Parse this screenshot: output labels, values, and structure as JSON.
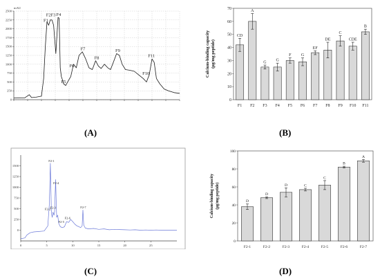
{
  "panel_labels": [
    "(A)",
    "(B)",
    "(C)",
    "(D)"
  ],
  "colors": {
    "chromA": "#1a1a1a",
    "chromC": "#6a78d8",
    "bar": "#d9d9d9"
  },
  "chart_data": [
    {
      "id": "A",
      "type": "line",
      "yunit": "mAU",
      "xunit": "min",
      "xlim": [
        0,
        30
      ],
      "ylim": [
        0,
        2500
      ],
      "xticks": [
        "0.0",
        "2.5",
        "5.0",
        "7.5",
        "10.0",
        "12.5",
        "15.0",
        "17.5",
        "20.0",
        "22.5",
        "25.0",
        "27.5",
        "30.0"
      ],
      "yticks": [
        "0",
        "250",
        "500",
        "750",
        "1000",
        "1250",
        "1500",
        "1750",
        "2000",
        "2250",
        "2500"
      ],
      "grid": true,
      "x": [
        0,
        2,
        2.8,
        3.2,
        4,
        5,
        5.4,
        5.7,
        6.0,
        6.3,
        6.6,
        6.9,
        7.2,
        7.6,
        8.0,
        8.2,
        8.4,
        8.6,
        8.8,
        9.0,
        9.4,
        9.8,
        10.3,
        10.8,
        11.3,
        11.8,
        12.4,
        13.0,
        13.6,
        14.2,
        14.8,
        15.3,
        15.8,
        16.4,
        17.0,
        17.5,
        18.0,
        18.6,
        19.1,
        19.6,
        20.2,
        21.0,
        21.8,
        22.6,
        23.4,
        24.0,
        24.5,
        25.0,
        25.4,
        25.8,
        26.4,
        27.2,
        28.0,
        29.0,
        30.0
      ],
      "y": [
        50,
        55,
        140,
        60,
        70,
        100,
        600,
        1500,
        2200,
        2100,
        2250,
        2250,
        2100,
        1300,
        2320,
        2300,
        900,
        650,
        560,
        450,
        400,
        520,
        650,
        1000,
        900,
        1250,
        1350,
        1150,
        900,
        850,
        1100,
        950,
        880,
        1000,
        900,
        850,
        1050,
        1300,
        1250,
        1000,
        850,
        830,
        800,
        700,
        600,
        500,
        700,
        1150,
        1050,
        600,
        450,
        300,
        250,
        200,
        180
      ],
      "annotations": [
        {
          "label": "F1",
          "x": 5.8,
          "y": 2180
        },
        {
          "label": "F2F3",
          "x": 6.7,
          "y": 2330
        },
        {
          "label": "F4",
          "x": 8.1,
          "y": 2340
        },
        {
          "label": "F5",
          "x": 9.0,
          "y": 450
        },
        {
          "label": "F6",
          "x": 10.5,
          "y": 900
        },
        {
          "label": "F7",
          "x": 12.5,
          "y": 1380
        },
        {
          "label": "F8",
          "x": 15.0,
          "y": 1120
        },
        {
          "label": "F9",
          "x": 18.8,
          "y": 1330
        },
        {
          "label": "F10",
          "x": 23.9,
          "y": 680
        },
        {
          "label": "F11",
          "x": 24.9,
          "y": 1180
        }
      ]
    },
    {
      "id": "B",
      "type": "bar",
      "ylabel": "Calcium-binding capacity\n(μg/mg peptide)",
      "ylim": [
        0,
        70
      ],
      "yticks": [
        "0",
        "10",
        "20",
        "30",
        "40",
        "50",
        "60",
        "70"
      ],
      "categories": [
        "F1",
        "F2",
        "F3",
        "F4",
        "F5",
        "F6",
        "F7",
        "F8",
        "F9",
        "F10",
        "F11"
      ],
      "values": [
        42,
        60,
        25,
        25,
        30,
        29,
        36,
        38,
        45,
        41,
        52
      ],
      "errors": [
        5,
        6,
        1.5,
        3,
        2,
        3,
        1.5,
        6,
        4,
        3,
        2
      ],
      "letters": [
        "CD",
        "A",
        "G",
        "G",
        "F",
        "G",
        "EF",
        "DE",
        "C",
        "CDE",
        "B"
      ]
    },
    {
      "id": "C",
      "type": "line",
      "xlim": [
        0,
        30
      ],
      "ylim": [
        -250,
        1750
      ],
      "xticks": [
        "0",
        "5",
        "10",
        "15",
        "20",
        "25"
      ],
      "yticks": [
        "0",
        "250",
        "500",
        "750",
        "1000",
        "1250",
        "1500"
      ],
      "x": [
        0,
        0.8,
        1.2,
        1.8,
        2.5,
        3.5,
        4.5,
        5.2,
        5.5,
        5.7,
        5.9,
        6.05,
        6.2,
        6.4,
        6.5,
        6.7,
        6.9,
        7.1,
        7.3,
        7.6,
        8.0,
        8.4,
        8.8,
        9.2,
        9.6,
        10.0,
        10.4,
        10.8,
        11.2,
        11.5,
        11.8,
        11.95,
        12.1,
        12.4,
        13,
        14,
        15,
        16,
        17,
        18,
        19,
        20,
        21,
        22,
        23,
        24,
        25,
        26,
        27,
        28,
        29,
        30
      ],
      "y": [
        -200,
        -180,
        -110,
        -60,
        -40,
        -30,
        -20,
        100,
        600,
        1560,
        400,
        300,
        420,
        350,
        430,
        1180,
        300,
        350,
        160,
        80,
        60,
        80,
        200,
        180,
        250,
        200,
        140,
        100,
        80,
        60,
        100,
        470,
        120,
        50,
        30,
        40,
        20,
        30,
        10,
        20,
        15,
        10,
        5,
        10,
        0,
        5,
        0,
        5,
        0,
        0,
        0,
        0
      ],
      "annotations": [
        {
          "label": "F2-1",
          "x": 5.9,
          "y": 1570
        },
        {
          "label": "F2-2",
          "x": 5.2,
          "y": 450
        },
        {
          "label": "F2-3",
          "x": 6.2,
          "y": 480
        },
        {
          "label": "F2-4",
          "x": 6.8,
          "y": 1060
        },
        {
          "label": "F2-5",
          "x": 7.8,
          "y": 150
        },
        {
          "label": "F2-6",
          "x": 9.0,
          "y": 240
        },
        {
          "label": "F2-7",
          "x": 12.0,
          "y": 490
        }
      ]
    },
    {
      "id": "D",
      "type": "bar",
      "ylabel": "Calcium-binding capacity\n(μg/mg peptide)",
      "ylim": [
        0,
        100
      ],
      "yticks": [
        "0",
        "20",
        "40",
        "60",
        "80",
        "100"
      ],
      "categories": [
        "F2-1",
        "F2-2",
        "F2-3",
        "F2-4",
        "F2-5",
        "F2-6",
        "F2-7"
      ],
      "values": [
        38,
        48,
        54,
        57,
        62,
        82,
        89
      ],
      "errors": [
        3,
        1,
        5,
        1.5,
        5,
        1,
        1.5
      ],
      "letters": [
        "D",
        "D",
        "D",
        "C",
        "C",
        "B",
        "A"
      ]
    }
  ]
}
